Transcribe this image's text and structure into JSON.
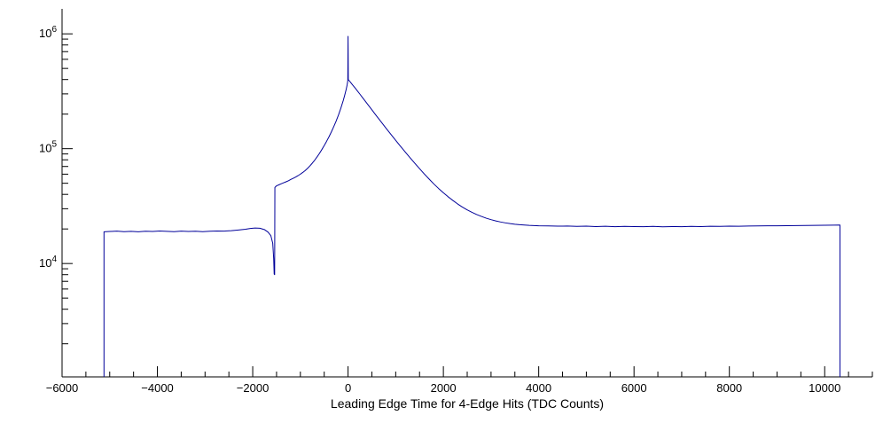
{
  "chart": {
    "background": "#ffffff",
    "axis_color": "#000000",
    "text_color": "#000000"
  },
  "axes": {
    "x": {
      "major_step": 2000,
      "minor_step": 500,
      "ticks": [
        {
          "value": -6000,
          "label": "−6000"
        },
        {
          "value": -4000,
          "label": "−4000"
        },
        {
          "value": -2000,
          "label": "−2000"
        },
        {
          "value": 0,
          "label": "0"
        },
        {
          "value": 2000,
          "label": "2000"
        },
        {
          "value": 4000,
          "label": "4000"
        },
        {
          "value": 6000,
          "label": "6000"
        },
        {
          "value": 8000,
          "label": "8000"
        },
        {
          "value": 10000,
          "label": "10000"
        }
      ]
    },
    "y": {
      "scale": "log",
      "ticks": [
        {
          "value": 10000,
          "mantissa": "10",
          "exponent": "4"
        },
        {
          "value": 100000,
          "mantissa": "10",
          "exponent": "5"
        },
        {
          "value": 1000000,
          "mantissa": "10",
          "exponent": "6"
        }
      ]
    }
  },
  "chart_data": {
    "type": "line",
    "title": "",
    "xlabel": "Leading Edge Time for 4-Edge Hits (TDC Counts)",
    "ylabel": "",
    "line_color": "#000099",
    "xlim": [
      -6000,
      11000
    ],
    "ylim": [
      1030,
      1650000
    ],
    "grid": false,
    "legend": "none",
    "points": [
      [
        -5120,
        1030
      ],
      [
        -5120,
        18900
      ],
      [
        -5000,
        19000
      ],
      [
        -4850,
        19150
      ],
      [
        -4700,
        18950
      ],
      [
        -4550,
        19050
      ],
      [
        -4400,
        18900
      ],
      [
        -4250,
        19100
      ],
      [
        -4100,
        19000
      ],
      [
        -3950,
        19200
      ],
      [
        -3800,
        19050
      ],
      [
        -3650,
        18950
      ],
      [
        -3500,
        19150
      ],
      [
        -3350,
        19000
      ],
      [
        -3200,
        19100
      ],
      [
        -3050,
        18950
      ],
      [
        -2900,
        19100
      ],
      [
        -2750,
        19200
      ],
      [
        -2600,
        19150
      ],
      [
        -2450,
        19300
      ],
      [
        -2300,
        19600
      ],
      [
        -2150,
        19900
      ],
      [
        -2050,
        20200
      ],
      [
        -1950,
        20400
      ],
      [
        -1850,
        20300
      ],
      [
        -1750,
        19700
      ],
      [
        -1680,
        18800
      ],
      [
        -1620,
        17500
      ],
      [
        -1580,
        15000
      ],
      [
        -1560,
        11000
      ],
      [
        -1550,
        8100
      ],
      [
        -1540,
        8000
      ],
      [
        -1535,
        46000
      ],
      [
        -1500,
        47500
      ],
      [
        -1450,
        48500
      ],
      [
        -1400,
        49500
      ],
      [
        -1350,
        50500
      ],
      [
        -1300,
        51500
      ],
      [
        -1250,
        52600
      ],
      [
        -1200,
        54000
      ],
      [
        -1150,
        55200
      ],
      [
        -1100,
        56600
      ],
      [
        -1050,
        58200
      ],
      [
        -1000,
        60000
      ],
      [
        -950,
        62100
      ],
      [
        -900,
        64500
      ],
      [
        -850,
        67400
      ],
      [
        -800,
        70800
      ],
      [
        -750,
        74800
      ],
      [
        -700,
        79400
      ],
      [
        -650,
        84800
      ],
      [
        -600,
        91000
      ],
      [
        -550,
        98200
      ],
      [
        -500,
        106500
      ],
      [
        -450,
        116000
      ],
      [
        -400,
        127000
      ],
      [
        -350,
        140000
      ],
      [
        -300,
        155500
      ],
      [
        -250,
        174000
      ],
      [
        -200,
        197000
      ],
      [
        -150,
        226000
      ],
      [
        -100,
        263000
      ],
      [
        -70,
        292000
      ],
      [
        -40,
        327000
      ],
      [
        -20,
        358000
      ],
      [
        -10,
        380000
      ],
      [
        -5,
        395000
      ],
      [
        0,
        950000
      ],
      [
        5,
        400000
      ],
      [
        20,
        393000
      ],
      [
        50,
        379000
      ],
      [
        100,
        357000
      ],
      [
        150,
        337000
      ],
      [
        200,
        317000
      ],
      [
        250,
        298000
      ],
      [
        300,
        280000
      ],
      [
        350,
        263000
      ],
      [
        400,
        247000
      ],
      [
        450,
        232000
      ],
      [
        500,
        218000
      ],
      [
        600,
        192000
      ],
      [
        700,
        170000
      ],
      [
        800,
        150000
      ],
      [
        900,
        133000
      ],
      [
        1000,
        118000
      ],
      [
        1100,
        105000
      ],
      [
        1200,
        93500
      ],
      [
        1300,
        83500
      ],
      [
        1400,
        74700
      ],
      [
        1500,
        67000
      ],
      [
        1600,
        60200
      ],
      [
        1700,
        54400
      ],
      [
        1800,
        49300
      ],
      [
        1900,
        45000
      ],
      [
        2000,
        41300
      ],
      [
        2100,
        38100
      ],
      [
        2200,
        35400
      ],
      [
        2300,
        33000
      ],
      [
        2400,
        31000
      ],
      [
        2500,
        29300
      ],
      [
        2600,
        27900
      ],
      [
        2700,
        26700
      ],
      [
        2800,
        25700
      ],
      [
        2900,
        24800
      ],
      [
        3000,
        24100
      ],
      [
        3100,
        23500
      ],
      [
        3200,
        23000
      ],
      [
        3300,
        22600
      ],
      [
        3400,
        22250
      ],
      [
        3500,
        22000
      ],
      [
        3600,
        21800
      ],
      [
        3700,
        21650
      ],
      [
        3800,
        21500
      ],
      [
        3900,
        21400
      ],
      [
        4000,
        21300
      ],
      [
        4200,
        21250
      ],
      [
        4400,
        21150
      ],
      [
        4600,
        21200
      ],
      [
        4800,
        21050
      ],
      [
        5000,
        21150
      ],
      [
        5200,
        21000
      ],
      [
        5400,
        21100
      ],
      [
        5600,
        20950
      ],
      [
        5800,
        21050
      ],
      [
        6000,
        21000
      ],
      [
        6200,
        20950
      ],
      [
        6400,
        21050
      ],
      [
        6600,
        20900
      ],
      [
        6800,
        21000
      ],
      [
        7000,
        20950
      ],
      [
        7200,
        21050
      ],
      [
        7400,
        21000
      ],
      [
        7600,
        21100
      ],
      [
        7800,
        21050
      ],
      [
        8000,
        21150
      ],
      [
        8200,
        21100
      ],
      [
        8400,
        21200
      ],
      [
        8600,
        21250
      ],
      [
        8800,
        21300
      ],
      [
        9000,
        21300
      ],
      [
        9200,
        21350
      ],
      [
        9400,
        21400
      ],
      [
        9600,
        21450
      ],
      [
        9800,
        21500
      ],
      [
        10000,
        21550
      ],
      [
        10200,
        21600
      ],
      [
        10320,
        21650
      ],
      [
        10320,
        1030
      ]
    ]
  }
}
